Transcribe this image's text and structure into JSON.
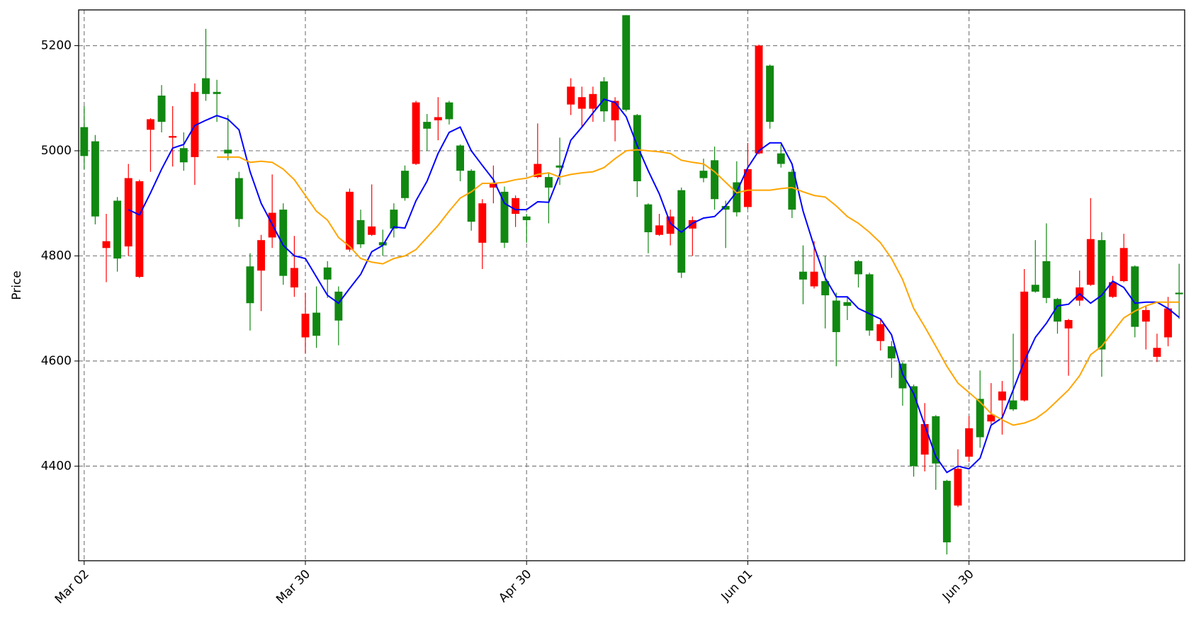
{
  "chart_data": {
    "type": "candlestick",
    "ylabel": "Price",
    "categories": [
      "Mar 02",
      null,
      null,
      null,
      null,
      null,
      null,
      null,
      null,
      null,
      null,
      null,
      null,
      null,
      null,
      null,
      null,
      null,
      null,
      null,
      "Mar 30",
      null,
      null,
      null,
      null,
      null,
      null,
      null,
      null,
      null,
      null,
      null,
      null,
      null,
      null,
      null,
      null,
      null,
      null,
      null,
      "Apr 30",
      null,
      null,
      null,
      null,
      null,
      null,
      null,
      null,
      null,
      null,
      null,
      null,
      null,
      null,
      null,
      null,
      null,
      null,
      null,
      "Jun 01",
      null,
      null,
      null,
      null,
      null,
      null,
      null,
      null,
      null,
      null,
      null,
      null,
      null,
      null,
      null,
      null,
      null,
      null,
      null,
      "Jun 30",
      null,
      null,
      null,
      null,
      null,
      null,
      null,
      null,
      null,
      null,
      null,
      null,
      null,
      null,
      null,
      null,
      null,
      null,
      null
    ],
    "open": [
      5045,
      5018,
      4815,
      4905,
      4818,
      4760,
      5040,
      5105,
      5025,
      5005,
      4988,
      5138,
      5112,
      5002,
      4948,
      4780,
      4772,
      4835,
      4888,
      4740,
      4645,
      4692,
      4778,
      4732,
      4812,
      4868,
      4840,
      4826,
      4888,
      4962,
      4975,
      5055,
      5058,
      5092,
      5010,
      4962,
      4825,
      4930,
      4922,
      4880,
      4875,
      4950,
      4950,
      4972,
      5088,
      5080,
      5080,
      5132,
      5058,
      5258,
      5068,
      4898,
      4840,
      4842,
      4925,
      4852,
      4962,
      4982,
      4895,
      4940,
      4893,
      4995,
      5162,
      4995,
      4960,
      4770,
      4742,
      4752,
      4715,
      4712,
      4790,
      4765,
      4638,
      4628,
      4595,
      4552,
      4422,
      4495,
      4372,
      4325,
      4418,
      4528,
      4485,
      4525,
      4525,
      4525,
      4745,
      4790,
      4718,
      4662,
      4715,
      4745,
      4830,
      4722,
      4752,
      4780,
      4675,
      4608,
      4645,
      4730
    ],
    "high": [
      5085,
      5030,
      4880,
      4912,
      4975,
      4945,
      5062,
      5125,
      5085,
      5035,
      5128,
      5232,
      5135,
      5068,
      4960,
      4805,
      4840,
      4955,
      4900,
      4838,
      4730,
      4742,
      4790,
      4742,
      4928,
      4888,
      4936,
      4850,
      4900,
      4972,
      5095,
      5070,
      5102,
      5095,
      5012,
      4965,
      4908,
      4972,
      4932,
      4915,
      4880,
      5052,
      4958,
      5025,
      5138,
      5122,
      5122,
      5140,
      5102,
      5258,
      5070,
      4900,
      4880,
      4888,
      4930,
      4875,
      4985,
      5008,
      4905,
      4980,
      5015,
      5202,
      5164,
      5012,
      4965,
      4820,
      4828,
      4800,
      4730,
      4722,
      4792,
      4768,
      4678,
      4638,
      4598,
      4555,
      4520,
      4497,
      4374,
      4432,
      4495,
      4582,
      4558,
      4562,
      4652,
      4775,
      4830,
      4862,
      4720,
      4680,
      4772,
      4910,
      4845,
      4762,
      4842,
      4782,
      4705,
      4652,
      4722,
      4785
    ],
    "low": [
      4965,
      4860,
      4750,
      4770,
      4800,
      4758,
      4960,
      5035,
      4970,
      4962,
      4935,
      5095,
      5055,
      4982,
      4855,
      4658,
      4695,
      4815,
      4745,
      4722,
      4615,
      4625,
      4720,
      4630,
      4808,
      4815,
      4838,
      4800,
      4835,
      4905,
      4973,
      5000,
      5020,
      5050,
      4942,
      4848,
      4775,
      4900,
      4815,
      4855,
      4825,
      4948,
      4862,
      4935,
      5068,
      5045,
      5055,
      5055,
      5018,
      5075,
      4912,
      4805,
      4838,
      4820,
      4758,
      4800,
      4940,
      4888,
      4815,
      4875,
      4890,
      4993,
      5042,
      4968,
      4872,
      4708,
      4738,
      4662,
      4590,
      4678,
      4740,
      4648,
      4620,
      4568,
      4515,
      4380,
      4390,
      4355,
      4232,
      4322,
      4408,
      4435,
      4480,
      4460,
      4505,
      4523,
      4730,
      4710,
      4652,
      4572,
      4705,
      4743,
      4570,
      4720,
      4750,
      4645,
      4622,
      4598,
      4628,
      4680
    ],
    "close": [
      4990,
      4875,
      4828,
      4795,
      4948,
      4942,
      5060,
      5055,
      5028,
      4978,
      5112,
      5108,
      5108,
      4995,
      4870,
      4710,
      4830,
      4882,
      4762,
      4777,
      4690,
      4648,
      4755,
      4677,
      4922,
      4822,
      4856,
      4820,
      4852,
      4910,
      5092,
      5042,
      5064,
      5060,
      4962,
      4865,
      4900,
      4938,
      4825,
      4910,
      4868,
      4975,
      4930,
      4968,
      5122,
      5102,
      5108,
      5075,
      5095,
      5078,
      4942,
      4845,
      4858,
      4875,
      4768,
      4868,
      4948,
      4908,
      4888,
      4883,
      4965,
      5200,
      5055,
      4975,
      4888,
      4755,
      4770,
      4725,
      4655,
      4705,
      4765,
      4658,
      4670,
      4605,
      4548,
      4400,
      4480,
      4405,
      4255,
      4395,
      4472,
      4455,
      4498,
      4542,
      4508,
      4732,
      4732,
      4720,
      4675,
      4678,
      4740,
      4832,
      4622,
      4750,
      4815,
      4665,
      4697,
      4625,
      4700,
      4727
    ],
    "up_color": "#ff0000",
    "down_color": "#118811",
    "lines": [
      {
        "color": "#0000ff",
        "values": [
          null,
          null,
          null,
          null,
          4888,
          4878,
          4920,
          4965,
          5005,
          5012,
          5048,
          5058,
          5067,
          5060,
          5040,
          4960,
          4900,
          4860,
          4820,
          4800,
          4795,
          4760,
          4725,
          4710,
          4738,
          4765,
          4808,
          4820,
          4855,
          4853,
          4905,
          4942,
          4995,
          5035,
          5045,
          5000,
          4972,
          4945,
          4900,
          4888,
          4888,
          4903,
          4902,
          4955,
          5020,
          5045,
          5072,
          5098,
          5092,
          5065,
          5010,
          4962,
          4918,
          4862,
          4845,
          4862,
          4872,
          4875,
          4895,
          4922,
          4968,
          5000,
          5015,
          5015,
          4975,
          4885,
          4818,
          4758,
          4722,
          4722,
          4700,
          4690,
          4680,
          4650,
          4575,
          4538,
          4478,
          4418,
          4388,
          4400,
          4395,
          4415,
          4478,
          4492,
          4545,
          4600,
          4645,
          4672,
          4705,
          4708,
          4728,
          4710,
          4725,
          4752,
          4740,
          4710,
          4712,
          4712,
          4700,
          4683
        ]
      },
      {
        "color": "#ffa500",
        "values": [
          null,
          null,
          null,
          null,
          null,
          null,
          null,
          null,
          null,
          null,
          null,
          null,
          4988,
          4988,
          4988,
          4978,
          4980,
          4978,
          4965,
          4945,
          4915,
          4885,
          4868,
          4835,
          4818,
          4795,
          4788,
          4785,
          4795,
          4800,
          4812,
          4835,
          4858,
          4885,
          4910,
          4922,
          4938,
          4938,
          4940,
          4945,
          4948,
          4955,
          4958,
          4950,
          4955,
          4958,
          4960,
          4968,
          4985,
          5000,
          5002,
          5000,
          4998,
          4995,
          4982,
          4978,
          4975,
          4960,
          4940,
          4920,
          4925,
          4925,
          4925,
          4928,
          4930,
          4922,
          4915,
          4912,
          4895,
          4875,
          4862,
          4845,
          4825,
          4795,
          4755,
          4700,
          4665,
          4628,
          4590,
          4558,
          4540,
          4522,
          4500,
          4488,
          4478,
          4482,
          4490,
          4505,
          4525,
          4545,
          4572,
          4612,
          4628,
          4655,
          4682,
          4695,
          4705,
          4712,
          4712,
          4712
        ]
      }
    ],
    "ylim": [
      4220,
      5268
    ],
    "yticks": [
      4400,
      4600,
      4800,
      5000,
      5200
    ],
    "grid": true
  }
}
